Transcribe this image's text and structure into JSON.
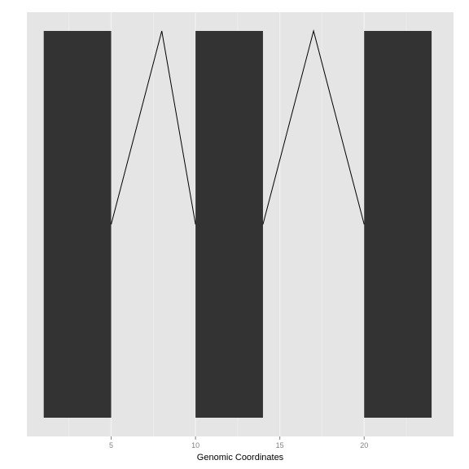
{
  "chart_data": {
    "type": "gene-structure",
    "title": "",
    "xlabel": "Genomic Coordinates",
    "ylabel": "",
    "xlim": [
      0,
      25.3
    ],
    "ylim": [
      0,
      1
    ],
    "x_ticks": [
      5,
      10,
      15,
      20
    ],
    "x_minor_ticks": [
      2.5,
      7.5,
      12.5,
      17.5,
      22.5
    ],
    "grid": true,
    "exons": [
      {
        "start": 1,
        "end": 5
      },
      {
        "start": 10,
        "end": 14
      },
      {
        "start": 20,
        "end": 24
      }
    ],
    "introns": [
      {
        "start": 5,
        "peak": 8,
        "end": 10
      },
      {
        "start": 14,
        "peak": 17,
        "end": 20
      }
    ],
    "exon_ymin": 0,
    "exon_ymax": 1,
    "intron_base_y": 0.5,
    "intron_peak_y": 1
  },
  "colors": {
    "panel_background": "#e5e5e5",
    "grid_line": "#f2f2f2",
    "exon_fill": "#333333",
    "intron_line": "#000000"
  }
}
